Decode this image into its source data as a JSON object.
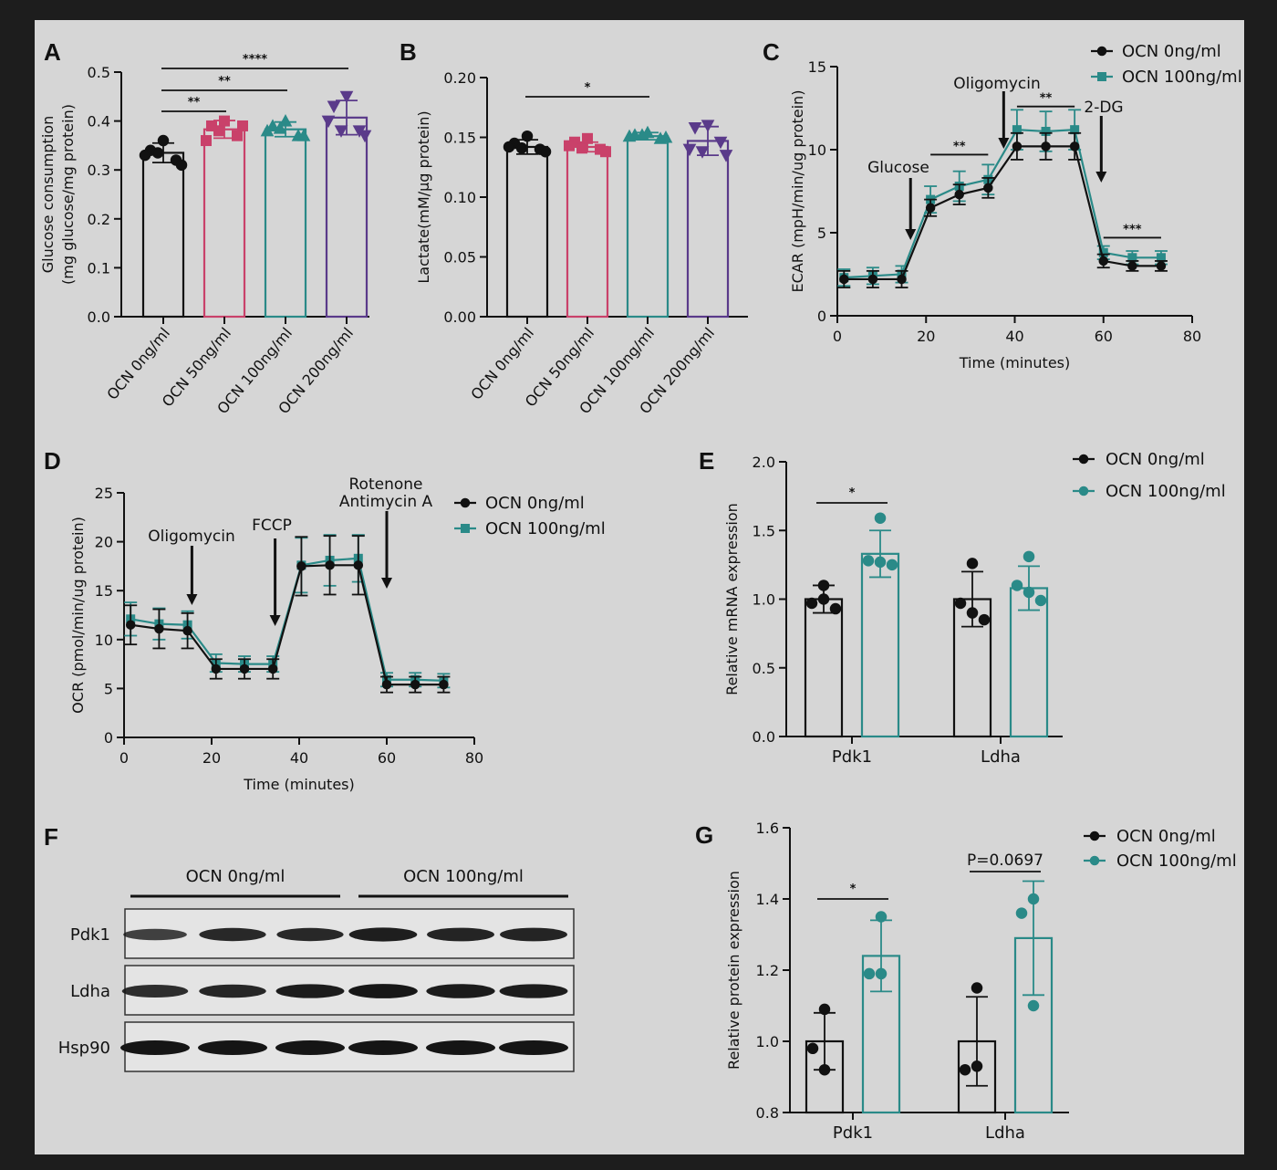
{
  "colors": {
    "background": "#d6d6d6",
    "frame": "#1d1d1d",
    "black": "#111111",
    "pink": "#c9416a",
    "teal": "#2a8a88",
    "purple": "#5a3a8a",
    "blot_bg": "#e4e4e4",
    "band": "#151515"
  },
  "chart_data": [
    {
      "id": "A",
      "letter": "A",
      "type": "bar",
      "ylabel": [
        "Glucose consumption",
        "(mg glucose/mg protein)"
      ],
      "ylim": [
        0,
        0.5
      ],
      "yticks": [
        "0.0",
        "0.1",
        "0.2",
        "0.3",
        "0.4",
        "0.5"
      ],
      "categories": [
        "OCN 0ng/ml",
        "OCN 50ng/ml",
        "OCN 100ng/ml",
        "OCN 200ng/ml"
      ],
      "values": [
        0.335,
        0.383,
        0.383,
        0.407
      ],
      "errors": [
        0.02,
        0.018,
        0.015,
        0.035
      ],
      "colors": [
        "#111111",
        "#c9416a",
        "#2a8a88",
        "#5a3a8a"
      ],
      "markers": [
        "circle",
        "square",
        "triangle",
        "invtriangle"
      ],
      "points": [
        [
          0.36,
          0.34,
          0.32,
          0.33,
          0.31,
          0.335
        ],
        [
          0.4,
          0.39,
          0.37,
          0.36,
          0.39,
          0.38
        ],
        [
          0.4,
          0.39,
          0.37,
          0.38,
          0.37,
          0.385
        ],
        [
          0.45,
          0.43,
          0.38,
          0.4,
          0.37,
          0.38
        ]
      ],
      "significance": [
        {
          "from": 0,
          "to": 1,
          "label": "**"
        },
        {
          "from": 0,
          "to": 2,
          "label": "**"
        },
        {
          "from": 0,
          "to": 3,
          "label": "****"
        }
      ]
    },
    {
      "id": "B",
      "letter": "B",
      "type": "bar",
      "ylabel": [
        "Lactate(mM/µg protein)"
      ],
      "ylim": [
        0,
        0.2
      ],
      "yticks": [
        "0.00",
        "0.05",
        "0.10",
        "0.15",
        "0.20"
      ],
      "categories": [
        "OCN 0ng/ml",
        "OCN 50ng/ml",
        "OCN 100ng/ml",
        "OCN 200ng/ml"
      ],
      "values": [
        0.142,
        0.142,
        0.151,
        0.147
      ],
      "errors": [
        0.006,
        0.004,
        0.003,
        0.012
      ],
      "colors": [
        "#111111",
        "#c9416a",
        "#2a8a88",
        "#5a3a8a"
      ],
      "markers": [
        "circle",
        "square",
        "triangle",
        "invtriangle"
      ],
      "points": [
        [
          0.151,
          0.145,
          0.14,
          0.142,
          0.138,
          0.141
        ],
        [
          0.149,
          0.146,
          0.14,
          0.143,
          0.138,
          0.141
        ],
        [
          0.154,
          0.152,
          0.149,
          0.151,
          0.15,
          0.152
        ],
        [
          0.16,
          0.158,
          0.146,
          0.14,
          0.135,
          0.138
        ]
      ],
      "significance": [
        {
          "from": 0,
          "to": 2,
          "label": "*"
        }
      ]
    },
    {
      "id": "C",
      "letter": "C",
      "type": "line",
      "ylabel": "ECAR (mpH/min/ug protein)",
      "xlabel": "Time (minutes)",
      "xlim": [
        0,
        80
      ],
      "ylim": [
        0,
        15
      ],
      "xticks": [
        "0",
        "20",
        "40",
        "60",
        "80"
      ],
      "yticks": [
        "0",
        "5",
        "10",
        "15"
      ],
      "x": [
        1.5,
        8,
        14.5,
        21,
        27.5,
        34,
        40.5,
        47,
        53.5,
        60,
        66.5,
        73
      ],
      "series": [
        {
          "name": "OCN 0ng/ml",
          "color": "#111111",
          "marker": "circle",
          "values": [
            2.2,
            2.2,
            2.2,
            6.5,
            7.3,
            7.7,
            10.2,
            10.2,
            10.2,
            3.3,
            3.0,
            3.0
          ],
          "errors": [
            0.5,
            0.5,
            0.5,
            0.5,
            0.6,
            0.6,
            0.8,
            0.8,
            0.8,
            0.4,
            0.3,
            0.3
          ]
        },
        {
          "name": "OCN 100ng/ml",
          "color": "#2a8a88",
          "marker": "square",
          "values": [
            2.3,
            2.4,
            2.5,
            7.0,
            7.8,
            8.2,
            11.2,
            11.1,
            11.2,
            3.8,
            3.5,
            3.5
          ],
          "errors": [
            0.5,
            0.5,
            0.5,
            0.8,
            0.9,
            0.9,
            1.2,
            1.2,
            1.2,
            0.4,
            0.4,
            0.4
          ]
        }
      ],
      "annotations": [
        {
          "label": "Glucose",
          "x": 16.5
        },
        {
          "label": "Oligomycin",
          "x": 37.5
        },
        {
          "label": "2-DG",
          "x": 59.5
        }
      ],
      "significance": [
        {
          "x1": 21,
          "x2": 34,
          "y": 9.7,
          "label": "**"
        },
        {
          "x1": 40.5,
          "x2": 53.5,
          "y": 12.6,
          "label": "**"
        },
        {
          "x1": 60,
          "x2": 73,
          "y": 4.7,
          "label": "***"
        }
      ]
    },
    {
      "id": "D",
      "letter": "D",
      "type": "line",
      "ylabel": "OCR (pmol/min/ug protein)",
      "xlabel": "Time (minutes)",
      "xlim": [
        0,
        80
      ],
      "ylim": [
        0,
        25
      ],
      "xticks": [
        "0",
        "20",
        "40",
        "60",
        "80"
      ],
      "yticks": [
        "0",
        "5",
        "10",
        "15",
        "20",
        "25"
      ],
      "x": [
        1.5,
        8,
        14.5,
        21,
        27.5,
        34,
        40.5,
        47,
        53.5,
        60,
        66.5,
        73
      ],
      "series": [
        {
          "name": "OCN 0ng/ml",
          "color": "#111111",
          "marker": "circle",
          "values": [
            11.5,
            11.1,
            10.9,
            7.0,
            7.0,
            7.0,
            17.5,
            17.6,
            17.6,
            5.4,
            5.4,
            5.4
          ],
          "errors": [
            2.0,
            2.0,
            1.8,
            1.0,
            1.0,
            1.0,
            3.0,
            3.0,
            3.0,
            0.8,
            0.8,
            0.8
          ]
        },
        {
          "name": "OCN 100ng/ml",
          "color": "#2a8a88",
          "marker": "square",
          "values": [
            12.1,
            11.6,
            11.5,
            7.6,
            7.5,
            7.5,
            17.6,
            18.1,
            18.3,
            5.9,
            5.9,
            5.8
          ],
          "errors": [
            1.7,
            1.6,
            1.4,
            0.9,
            0.8,
            0.8,
            2.8,
            2.6,
            2.4,
            0.7,
            0.7,
            0.7
          ]
        }
      ],
      "annotations": [
        {
          "label": "Oligomycin",
          "x": 15.5
        },
        {
          "label": "FCCP",
          "x": 34.5
        },
        {
          "label": "Rotenone Antimycin A",
          "x": 60
        }
      ]
    },
    {
      "id": "E",
      "letter": "E",
      "type": "bar",
      "ylabel": "Relative mRNA expression",
      "ylim": [
        0,
        2.0
      ],
      "yticks": [
        "0.0",
        "0.5",
        "1.0",
        "1.5",
        "2.0"
      ],
      "categories": [
        "Pdk1",
        "Ldha"
      ],
      "series": [
        {
          "name": "OCN 0ng/ml",
          "color": "#111111",
          "values": [
            1.0,
            1.0
          ],
          "errors": [
            0.1,
            0.2
          ],
          "points": [
            [
              1.1,
              0.97,
              1.0,
              0.93
            ],
            [
              1.26,
              0.97,
              0.9,
              0.85
            ]
          ]
        },
        {
          "name": "OCN 100ng/ml",
          "color": "#2a8a88",
          "values": [
            1.33,
            1.08
          ],
          "errors": [
            0.17,
            0.16
          ],
          "points": [
            [
              1.59,
              1.28,
              1.27,
              1.25
            ],
            [
              1.31,
              1.1,
              1.05,
              0.99
            ]
          ]
        }
      ],
      "significance": [
        {
          "group": 0,
          "label": "*"
        }
      ]
    },
    {
      "id": "G",
      "letter": "G",
      "type": "bar",
      "ylabel": "Relative protein expression",
      "ylim": [
        0.8,
        1.6
      ],
      "yticks": [
        "0.8",
        "1.0",
        "1.2",
        "1.4",
        "1.6"
      ],
      "categories": [
        "Pdk1",
        "Ldha"
      ],
      "series": [
        {
          "name": "OCN 0ng/ml",
          "color": "#111111",
          "values": [
            1.0,
            1.0
          ],
          "errors": [
            0.08,
            0.125
          ],
          "points": [
            [
              1.09,
              0.98,
              0.92
            ],
            [
              1.15,
              0.92,
              0.93
            ]
          ]
        },
        {
          "name": "OCN 100ng/ml",
          "color": "#2a8a88",
          "values": [
            1.24,
            1.29
          ],
          "errors": [
            0.1,
            0.16
          ],
          "points": [
            [
              1.35,
              1.19,
              1.19
            ],
            [
              1.4,
              1.36,
              1.1
            ]
          ]
        }
      ],
      "significance": [
        {
          "group": 0,
          "label": "*"
        },
        {
          "group": 1,
          "label": "P=0.0697"
        }
      ]
    }
  ],
  "western": {
    "letter": "F",
    "groups": [
      "OCN 0ng/ml",
      "OCN 100ng/ml"
    ],
    "rows": [
      "Pdk1",
      "Ldha",
      "Hsp90"
    ],
    "band_strength": [
      [
        0.55,
        0.8,
        0.8,
        0.9,
        0.85,
        0.85
      ],
      [
        0.75,
        0.82,
        0.92,
        0.98,
        0.95,
        0.92
      ],
      [
        1,
        1,
        1,
        1,
        1,
        1
      ]
    ]
  }
}
